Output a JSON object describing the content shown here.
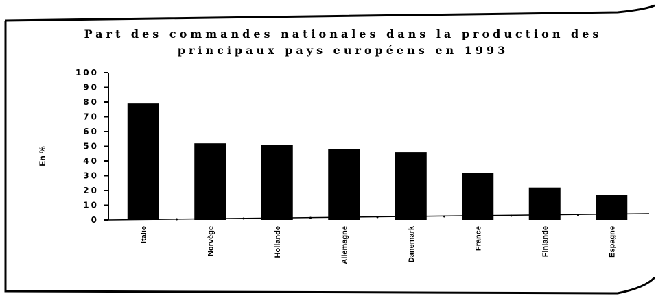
{
  "chart_data": {
    "type": "bar",
    "title_lines": [
      "Part des commandes nationales dans la production des",
      "principaux pays européens en 1993"
    ],
    "ylabel": "En %",
    "xlabel": "",
    "ylim": [
      0,
      100
    ],
    "ytick_step": 10,
    "yticks": [
      "0",
      "10",
      "20",
      "30",
      "40",
      "50",
      "60",
      "70",
      "80",
      "90",
      "100"
    ],
    "categories": [
      "Italie",
      "Norvège",
      "Hollande",
      "Allemagne",
      "Danemark",
      "France",
      "Finlande",
      "Espagne"
    ],
    "values": [
      79,
      52,
      51,
      48,
      46,
      32,
      22,
      17
    ],
    "bar_color": "#000000",
    "grid": false,
    "legend": "none"
  }
}
